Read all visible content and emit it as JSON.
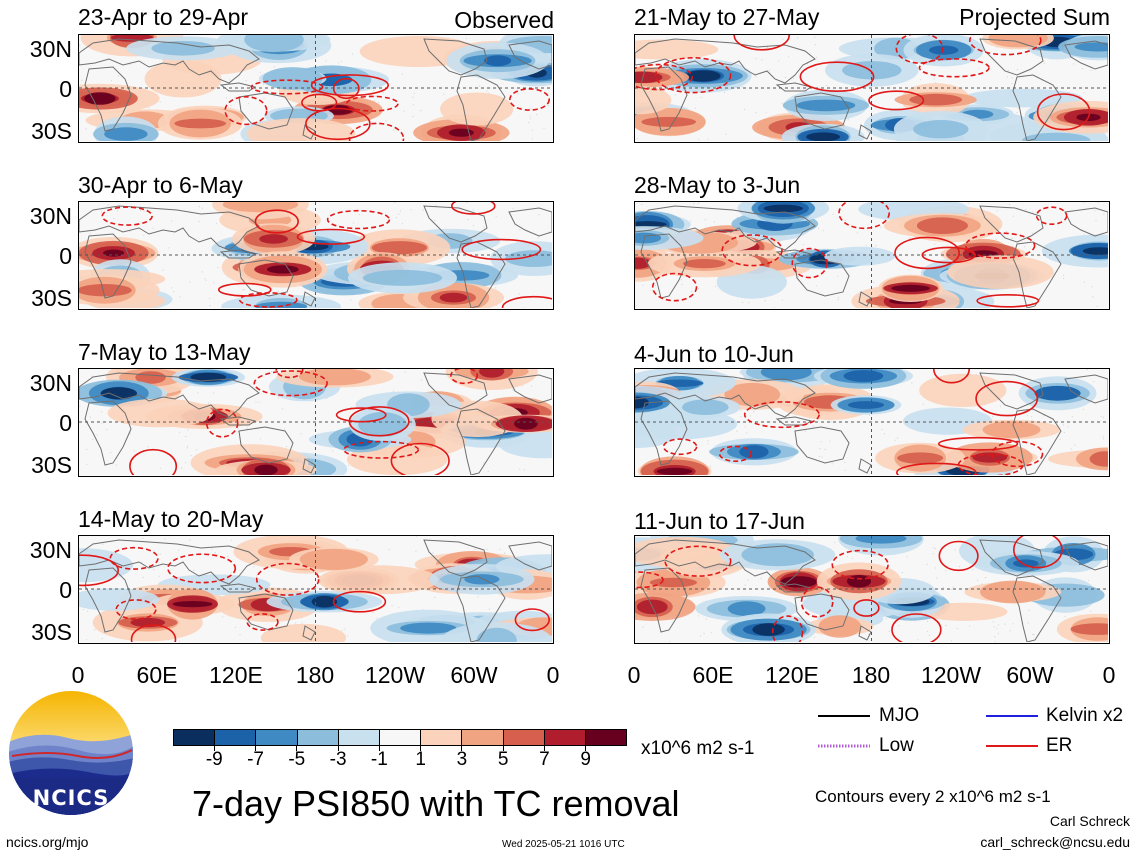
{
  "panels": [
    {
      "title": "23-Apr to 29-Apr",
      "tag": "Observed",
      "seed": 1
    },
    {
      "title": "30-Apr to 6-May",
      "tag": "",
      "seed": 2
    },
    {
      "title": "7-May to 13-May",
      "tag": "",
      "seed": 3
    },
    {
      "title": "14-May to 20-May",
      "tag": "",
      "seed": 4
    },
    {
      "title": "21-May to 27-May",
      "tag": "Projected Sum",
      "seed": 5
    },
    {
      "title": "28-May to 3-Jun",
      "tag": "",
      "seed": 6
    },
    {
      "title": "4-Jun to 10-Jun",
      "tag": "",
      "seed": 7
    },
    {
      "title": "11-Jun to 17-Jun",
      "tag": "",
      "seed": 8
    }
  ],
  "lat_labels": [
    "30N",
    "0",
    "30S"
  ],
  "lon_labels": [
    "0",
    "60E",
    "120E",
    "180",
    "120W",
    "60W",
    "0"
  ],
  "colorbar": {
    "colors": [
      "#0a2f5e",
      "#1c62a8",
      "#3f8ac2",
      "#8cbedc",
      "#c9e0ef",
      "#f7f7f7",
      "#fbd2bb",
      "#f1a482",
      "#d6604d",
      "#b01d2c",
      "#67001f"
    ],
    "labels": [
      "-9",
      "-7",
      "-5",
      "-3",
      "-1",
      "1",
      "3",
      "5",
      "7",
      "9"
    ],
    "units": "x10^6 m2 s-1"
  },
  "legend": [
    {
      "label": "MJO",
      "color": "#000000",
      "style": "solid"
    },
    {
      "label": "Kelvin x2",
      "color": "#1f1fe0",
      "style": "solid"
    },
    {
      "label": "Low",
      "color": "#b45cd6",
      "style": "dotted"
    },
    {
      "label": "ER",
      "color": "#e01818",
      "style": "solid"
    }
  ],
  "footer": {
    "main_title": "7-day PSI850 with TC removal",
    "contours_note": "Contours every 2 x10^6 m2 s-1",
    "author": "Carl Schreck",
    "email": "carl_schreck@ncsu.edu",
    "site": "ncics.org/mjo",
    "timestamp": "Wed 2025-05-21 1016 UTC",
    "logo_text": "NCICS"
  }
}
